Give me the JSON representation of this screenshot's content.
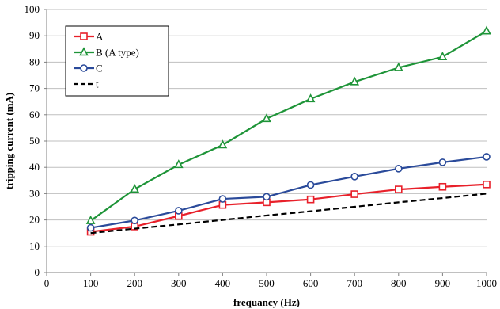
{
  "chart_data": {
    "type": "line",
    "xlabel": "frequancy (Hz)",
    "ylabel": "tripping current (mA)",
    "xlim": [
      0,
      1000
    ],
    "ylim": [
      0,
      100
    ],
    "x_ticks": [
      0,
      100,
      200,
      300,
      400,
      500,
      600,
      700,
      800,
      900,
      1000
    ],
    "y_ticks": [
      0,
      10,
      20,
      30,
      40,
      50,
      60,
      70,
      80,
      90,
      100
    ],
    "grid": "horizontal",
    "legend_position": "top-left",
    "x": [
      100,
      200,
      300,
      400,
      500,
      600,
      700,
      800,
      900,
      1000
    ],
    "series": [
      {
        "name": "A",
        "color": "#e8202a",
        "marker": "square",
        "dashed": false,
        "values": [
          15.5,
          17.5,
          21.5,
          25.7,
          26.7,
          27.8,
          29.8,
          31.6,
          32.6,
          33.5
        ]
      },
      {
        "name": "B (A type)",
        "color": "#1e9438",
        "marker": "triangle",
        "dashed": false,
        "values": [
          19.7,
          31.7,
          41.0,
          48.5,
          58.5,
          66.0,
          72.5,
          77.9,
          82.0,
          91.8
        ]
      },
      {
        "name": "C",
        "color": "#2a4a9a",
        "marker": "circle",
        "dashed": false,
        "values": [
          17.0,
          19.8,
          23.5,
          28.0,
          28.8,
          33.3,
          36.5,
          39.5,
          41.9,
          44.0
        ]
      },
      {
        "name": "t",
        "color": "#000000",
        "marker": "none",
        "dashed": true,
        "values": [
          15.0,
          16.7,
          18.3,
          20.0,
          21.7,
          23.3,
          25.0,
          26.7,
          28.3,
          30.0
        ]
      }
    ]
  }
}
